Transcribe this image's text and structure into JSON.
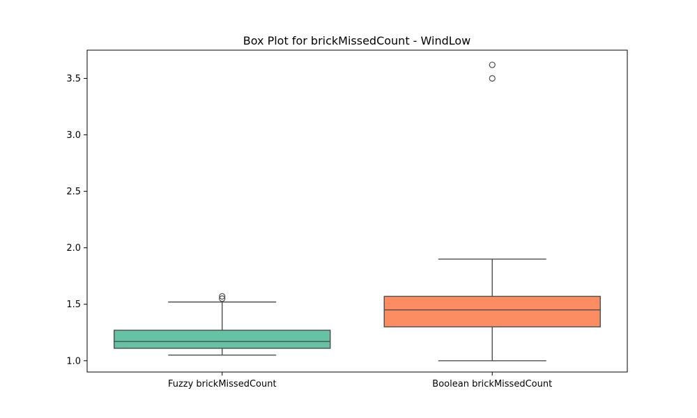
{
  "chart_data": {
    "type": "box",
    "title": "Box Plot for brickMissedCount - WindLow",
    "xlabel": "",
    "ylabel": "",
    "ylim": [
      0.9,
      3.75
    ],
    "yticks": [
      1.0,
      1.5,
      2.0,
      2.5,
      3.0,
      3.5
    ],
    "ytick_labels": [
      "1.0",
      "1.5",
      "2.0",
      "2.5",
      "3.0",
      "3.5"
    ],
    "grid": false,
    "categories": [
      "Fuzzy brickMissedCount",
      "Boolean brickMissedCount"
    ],
    "boxes": [
      {
        "name": "Fuzzy brickMissedCount",
        "color": "#66c2a5",
        "whisker_low": 1.05,
        "q1": 1.11,
        "median": 1.17,
        "q3": 1.27,
        "whisker_high": 1.52,
        "outliers": [
          1.55,
          1.57
        ]
      },
      {
        "name": "Boolean brickMissedCount",
        "color": "#fc8d62",
        "whisker_low": 1.0,
        "q1": 1.3,
        "median": 1.45,
        "q3": 1.57,
        "whisker_high": 1.9,
        "outliers": [
          3.5,
          3.62
        ]
      }
    ]
  }
}
